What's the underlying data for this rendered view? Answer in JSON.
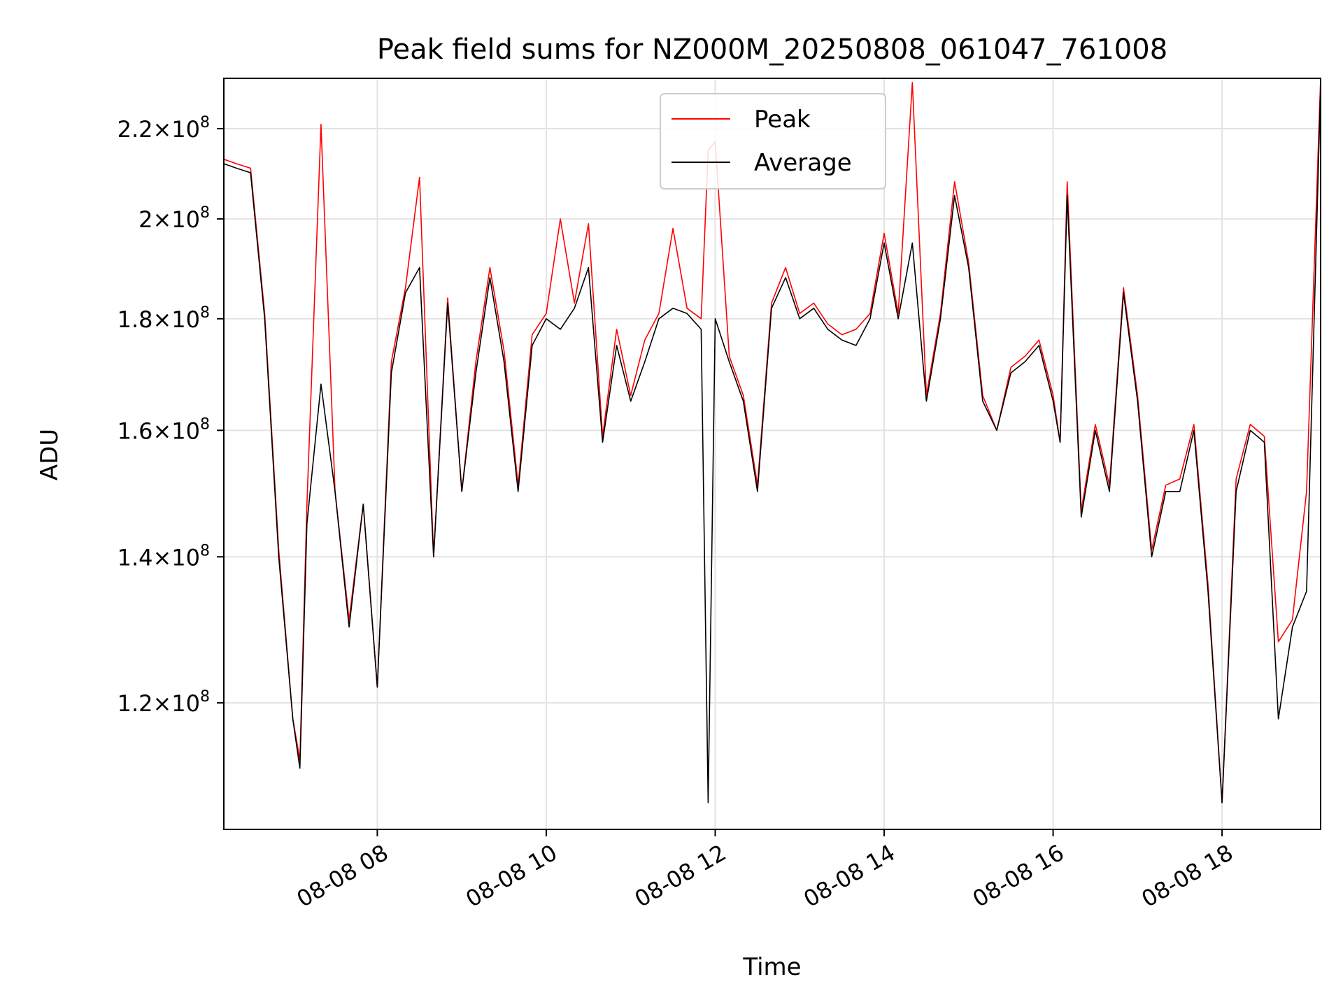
{
  "chart_data": {
    "type": "line",
    "title": "Peak field sums for NZ000M_20250808_061047_761008",
    "xlabel": "Time",
    "ylabel": "ADU",
    "yscale": "log",
    "grid": true,
    "legend_position": "top-center",
    "xlim": [
      "2025-08-08 06:11",
      "2025-08-08 19:10"
    ],
    "ylim": [
      105000000,
      232000000
    ],
    "x_ticks": [
      {
        "t": "2025-08-08 08:00",
        "label": "08-08 08"
      },
      {
        "t": "2025-08-08 10:00",
        "label": "08-08 10"
      },
      {
        "t": "2025-08-08 12:00",
        "label": "08-08 12"
      },
      {
        "t": "2025-08-08 14:00",
        "label": "08-08 14"
      },
      {
        "t": "2025-08-08 16:00",
        "label": "08-08 16"
      },
      {
        "t": "2025-08-08 18:00",
        "label": "08-08 18"
      }
    ],
    "y_ticks": [
      {
        "value": 120000000,
        "base": "1.2",
        "exp": "8"
      },
      {
        "value": 140000000,
        "base": "1.4",
        "exp": "8"
      },
      {
        "value": 160000000,
        "base": "1.6",
        "exp": "8"
      },
      {
        "value": 180000000,
        "base": "1.8",
        "exp": "8"
      },
      {
        "value": 200000000,
        "base": "2",
        "exp": "8"
      },
      {
        "value": 220000000,
        "base": "2.2",
        "exp": "8"
      }
    ],
    "series": [
      {
        "name": "Peak",
        "color": "#ff0000"
      },
      {
        "name": "Average",
        "color": "#000000"
      }
    ],
    "x": [
      "06:11",
      "06:20",
      "06:30",
      "06:40",
      "06:50",
      "07:00",
      "07:05",
      "07:10",
      "07:20",
      "07:30",
      "07:40",
      "07:50",
      "08:00",
      "08:10",
      "08:20",
      "08:30",
      "08:40",
      "08:50",
      "09:00",
      "09:10",
      "09:20",
      "09:30",
      "09:40",
      "09:50",
      "10:00",
      "10:10",
      "10:20",
      "10:30",
      "10:40",
      "10:50",
      "11:00",
      "11:10",
      "11:20",
      "11:30",
      "11:40",
      "11:50",
      "11:55",
      "12:00",
      "12:10",
      "12:20",
      "12:30",
      "12:40",
      "12:50",
      "13:00",
      "13:10",
      "13:20",
      "13:30",
      "13:40",
      "13:50",
      "14:00",
      "14:10",
      "14:20",
      "14:30",
      "14:40",
      "14:50",
      "15:00",
      "15:10",
      "15:20",
      "15:30",
      "15:40",
      "15:50",
      "16:00",
      "16:05",
      "16:10",
      "16:20",
      "16:30",
      "16:40",
      "16:50",
      "17:00",
      "17:10",
      "17:20",
      "17:30",
      "17:40",
      "17:50",
      "18:00",
      "18:10",
      "18:20",
      "18:30",
      "18:40",
      "18:50",
      "19:00",
      "19:10"
    ],
    "average": [
      212,
      211,
      210,
      180,
      140,
      118,
      112,
      145,
      168,
      150,
      130,
      148,
      122,
      170,
      185,
      190,
      140,
      183,
      150,
      170,
      188,
      172,
      150,
      175,
      180,
      178,
      182,
      190,
      158,
      175,
      165,
      172,
      180,
      182,
      181,
      178,
      108,
      180,
      172,
      165,
      150,
      182,
      188,
      180,
      182,
      178,
      176,
      175,
      180,
      195,
      180,
      195,
      165,
      180,
      205,
      190,
      165,
      160,
      170,
      172,
      175,
      165,
      158,
      205,
      146,
      160,
      150,
      185,
      165,
      140,
      150,
      150,
      160,
      135,
      108,
      150,
      160,
      158,
      118,
      130,
      135,
      230
    ],
    "peak": [
      213,
      212,
      211,
      181,
      141,
      118,
      113,
      148,
      221,
      150,
      131,
      148,
      122,
      172,
      186,
      209,
      140,
      184,
      150,
      172,
      190,
      174,
      151,
      177,
      181,
      200,
      183,
      199,
      159,
      178,
      166,
      176,
      181,
      198,
      182,
      180,
      215,
      217,
      173,
      166,
      151,
      183,
      190,
      181,
      183,
      179,
      177,
      178,
      181,
      197,
      181,
      231,
      166,
      181,
      208,
      191,
      166,
      160,
      171,
      173,
      176,
      166,
      158,
      208,
      147,
      161,
      151,
      186,
      166,
      141,
      151,
      152,
      161,
      136,
      108,
      152,
      161,
      159,
      128,
      131,
      150,
      232
    ]
  }
}
